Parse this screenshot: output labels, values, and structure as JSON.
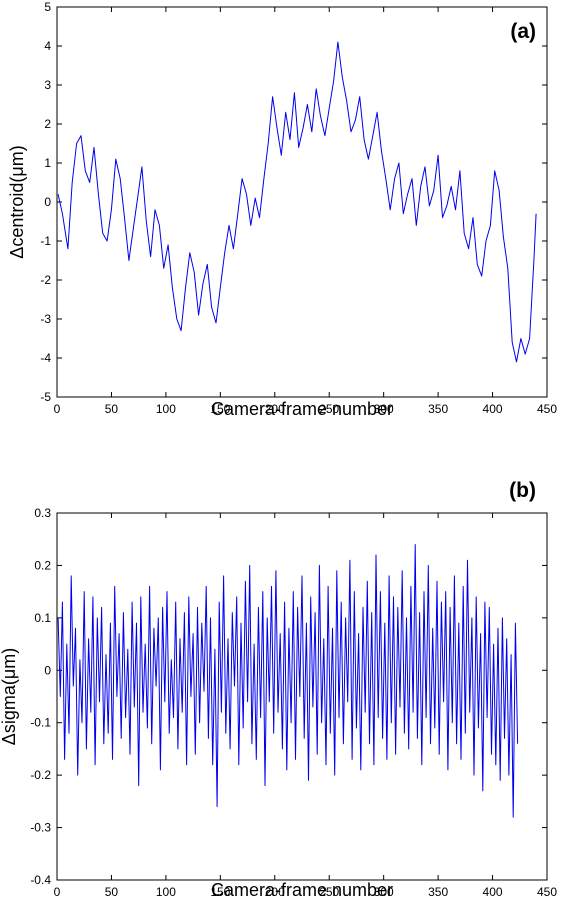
{
  "chart_data": [
    {
      "type": "line",
      "annotation": "(a)",
      "xlabel": "Camera-frame number",
      "ylabel": "Δcentroid(μm)",
      "xlim": [
        0,
        450
      ],
      "ylim": [
        -5,
        5
      ],
      "xticks": [
        0,
        50,
        100,
        150,
        200,
        250,
        300,
        350,
        400,
        450
      ],
      "yticks": [
        -5,
        -4,
        -3,
        -2,
        -1,
        0,
        1,
        2,
        3,
        4,
        5
      ],
      "grid": false,
      "color": "#0000ee",
      "series": [
        {
          "x": [
            1,
            5,
            10,
            14,
            18,
            22,
            26,
            30,
            34,
            38,
            42,
            46,
            50,
            54,
            58,
            62,
            66,
            70,
            74,
            78,
            82,
            86,
            90,
            94,
            98,
            102,
            106,
            110,
            114,
            118,
            122,
            126,
            130,
            134,
            138,
            142,
            146,
            150,
            154,
            158,
            162,
            166,
            170,
            174,
            178,
            182,
            186,
            190,
            194,
            198,
            202,
            206,
            210,
            214,
            218,
            222,
            226,
            230,
            234,
            238,
            242,
            246,
            250,
            254,
            258,
            262,
            266,
            270,
            274,
            278,
            282,
            286,
            290,
            294,
            298,
            302,
            306,
            310,
            314,
            318,
            322,
            326,
            330,
            334,
            338,
            342,
            346,
            350,
            354,
            358,
            362,
            366,
            370,
            374,
            378,
            382,
            386,
            390,
            394,
            398,
            402,
            406,
            410,
            414,
            418,
            422,
            426,
            430,
            434,
            438,
            440
          ],
          "y": [
            0.2,
            -0.3,
            -1.2,
            0.5,
            1.5,
            1.7,
            0.8,
            0.5,
            1.4,
            0.2,
            -0.8,
            -1.0,
            -0.2,
            1.1,
            0.6,
            -0.4,
            -1.5,
            -0.7,
            0.1,
            0.9,
            -0.5,
            -1.4,
            -0.2,
            -0.6,
            -1.7,
            -1.1,
            -2.2,
            -3.0,
            -3.3,
            -2.2,
            -1.3,
            -1.8,
            -2.9,
            -2.1,
            -1.6,
            -2.7,
            -3.1,
            -2.2,
            -1.3,
            -0.6,
            -1.2,
            -0.3,
            0.6,
            0.2,
            -0.6,
            0.1,
            -0.4,
            0.6,
            1.5,
            2.7,
            1.9,
            1.2,
            2.3,
            1.6,
            2.8,
            1.4,
            1.9,
            2.5,
            1.8,
            2.9,
            2.2,
            1.7,
            2.4,
            3.1,
            4.1,
            3.2,
            2.6,
            1.8,
            2.1,
            2.7,
            1.6,
            1.1,
            1.7,
            2.3,
            1.3,
            0.6,
            -0.2,
            0.6,
            1.0,
            -0.3,
            0.2,
            0.6,
            -0.6,
            0.4,
            0.9,
            -0.1,
            0.3,
            1.2,
            -0.4,
            -0.1,
            0.4,
            -0.2,
            0.8,
            -0.8,
            -1.2,
            -0.4,
            -1.6,
            -1.9,
            -1.0,
            -0.6,
            0.8,
            0.3,
            -0.9,
            -1.7,
            -3.6,
            -4.1,
            -3.5,
            -3.9,
            -3.5,
            -1.5,
            -0.3
          ]
        }
      ]
    },
    {
      "type": "line",
      "annotation": "(b)",
      "xlabel": "Camera-frame number",
      "ylabel": "Δsigma(μm)",
      "xlim": [
        0,
        450
      ],
      "ylim": [
        -0.4,
        0.3
      ],
      "xticks": [
        0,
        50,
        100,
        150,
        200,
        250,
        300,
        350,
        400,
        450
      ],
      "yticks": [
        -0.4,
        -0.3,
        -0.2,
        -0.1,
        0,
        0.1,
        0.2,
        0.3
      ],
      "grid": false,
      "color": "#0000ee",
      "series": [
        {
          "x_start": 1,
          "x_step": 2,
          "y": [
            0.1,
            -0.05,
            0.13,
            -0.17,
            0.05,
            -0.12,
            0.18,
            -0.03,
            0.08,
            -0.2,
            0.02,
            -0.1,
            0.15,
            -0.15,
            0.06,
            -0.08,
            0.14,
            -0.18,
            0.1,
            -0.06,
            0.12,
            -0.14,
            0.03,
            -0.12,
            0.09,
            -0.17,
            0.16,
            -0.05,
            0.07,
            -0.13,
            0.11,
            -0.09,
            0.04,
            -0.16,
            0.13,
            -0.07,
            0.09,
            -0.22,
            0.14,
            -0.08,
            0.05,
            -0.11,
            0.16,
            -0.14,
            0.08,
            -0.03,
            0.1,
            -0.19,
            0.12,
            -0.06,
            0.15,
            -0.12,
            0.02,
            -0.09,
            0.13,
            -0.15,
            0.06,
            -0.08,
            0.11,
            -0.18,
            0.14,
            -0.05,
            0.07,
            -0.16,
            0.12,
            -0.1,
            0.09,
            -0.04,
            0.16,
            -0.13,
            0.1,
            -0.18,
            0.04,
            -0.26,
            0.13,
            -0.08,
            0.18,
            -0.12,
            0.06,
            -0.15,
            0.11,
            -0.03,
            0.14,
            -0.18,
            0.09,
            -0.11,
            0.17,
            -0.06,
            0.2,
            -0.14,
            0.05,
            -0.17,
            0.12,
            -0.09,
            0.15,
            -0.22,
            0.1,
            -0.06,
            0.16,
            -0.12,
            0.19,
            -0.08,
            0.07,
            -0.15,
            0.13,
            -0.19,
            0.08,
            -0.1,
            0.15,
            -0.17,
            0.12,
            -0.05,
            0.18,
            -0.13,
            0.09,
            -0.21,
            0.14,
            -0.07,
            0.11,
            -0.16,
            0.2,
            -0.1,
            0.06,
            -0.18,
            0.16,
            -0.12,
            0.08,
            -0.2,
            0.19,
            -0.09,
            0.13,
            -0.14,
            0.1,
            -0.06,
            0.21,
            -0.17,
            0.15,
            -0.11,
            0.07,
            -0.19,
            0.12,
            -0.08,
            0.17,
            -0.14,
            0.11,
            -0.18,
            0.22,
            -0.09,
            0.15,
            -0.13,
            0.09,
            -0.17,
            0.18,
            -0.1,
            0.14,
            -0.16,
            0.12,
            -0.07,
            0.19,
            -0.12,
            0.1,
            -0.15,
            0.16,
            -0.08,
            0.24,
            -0.13,
            0.11,
            -0.18,
            0.15,
            -0.09,
            0.2,
            -0.14,
            0.08,
            -0.11,
            0.17,
            -0.16,
            0.13,
            -0.06,
            0.15,
            -0.19,
            0.12,
            -0.1,
            0.18,
            -0.14,
            0.09,
            -0.17,
            0.16,
            -0.12,
            0.21,
            -0.08,
            0.1,
            -0.2,
            0.14,
            -0.11,
            0.07,
            -0.23,
            0.13,
            -0.09,
            0.12,
            -0.16,
            0.05,
            -0.18,
            0.08,
            -0.21,
            0.1,
            -0.13,
            0.06,
            -0.2,
            0.03,
            -0.28,
            0.09,
            -0.14
          ]
        }
      ]
    }
  ]
}
